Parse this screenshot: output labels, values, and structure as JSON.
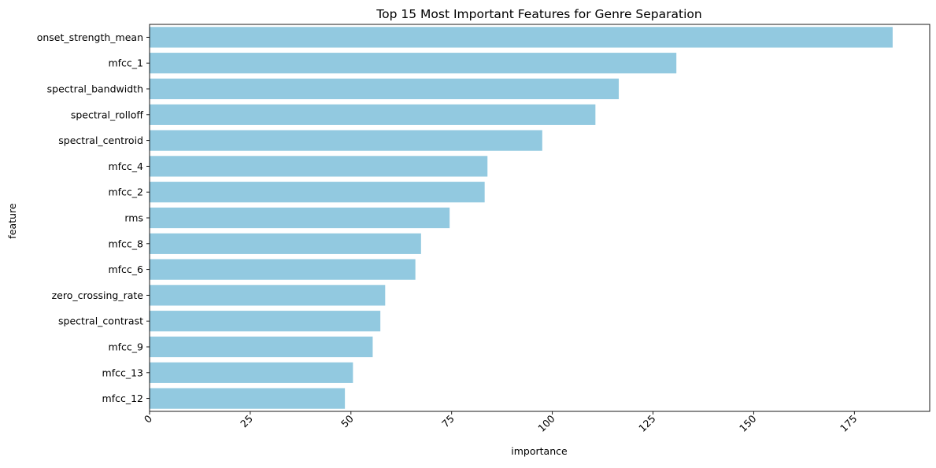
{
  "chart_data": {
    "type": "bar",
    "orientation": "horizontal",
    "title": "Top 15 Most Important Features for Genre Separation",
    "xlabel": "importance",
    "ylabel": "feature",
    "categories": [
      "onset_strength_mean",
      "mfcc_1",
      "spectral_bandwidth",
      "spectral_rolloff",
      "spectral_centroid",
      "mfcc_4",
      "mfcc_2",
      "rms",
      "mfcc_8",
      "mfcc_6",
      "zero_crossing_rate",
      "spectral_contrast",
      "mfcc_9",
      "mfcc_13",
      "mfcc_12"
    ],
    "values": [
      184.5,
      130.8,
      116.5,
      110.7,
      97.5,
      83.9,
      83.2,
      74.5,
      67.4,
      66.0,
      58.5,
      57.3,
      55.4,
      50.5,
      48.5
    ],
    "xlim": [
      0,
      193.7
    ],
    "xticks": [
      0,
      25,
      50,
      75,
      100,
      125,
      150,
      175
    ],
    "xtick_rotation": 45,
    "grid": false,
    "legend": "none",
    "bar_color": "#92c9e0"
  }
}
